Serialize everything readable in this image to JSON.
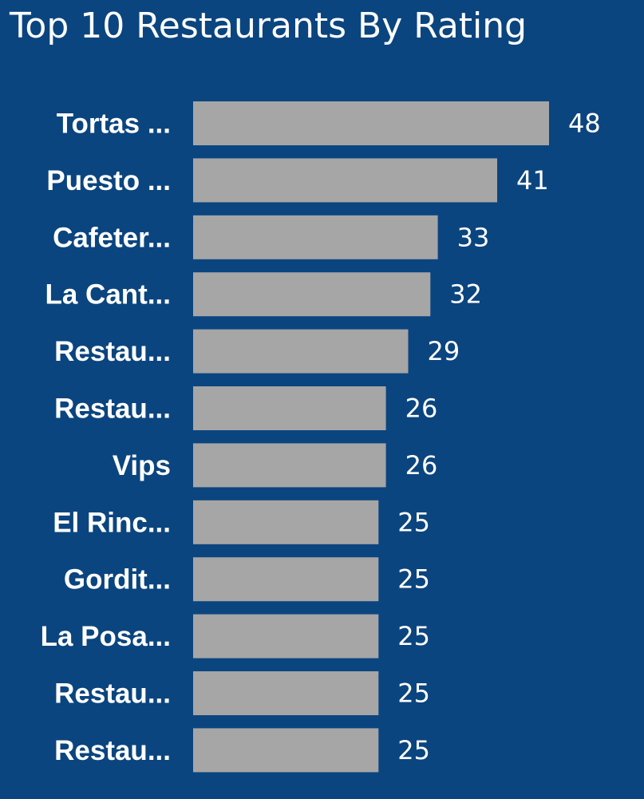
{
  "chart_data": {
    "type": "bar",
    "orientation": "horizontal",
    "title": "Top 10 Restaurants By Rating",
    "xlabel": "",
    "ylabel": "",
    "xlim": [
      0,
      48
    ],
    "grid": false,
    "bar_color": "#A6A6A6",
    "background_color": "#0B457F",
    "text_color": "#FFFFFF",
    "categories": [
      "Tortas ...",
      "Puesto ...",
      "Cafeter...",
      "La Cant...",
      "Restau...",
      "Restau...",
      "Vips",
      "El Rinc...",
      "Gordit...",
      "La Posa...",
      "Restau...",
      "Restau..."
    ],
    "values": [
      48,
      41,
      33,
      32,
      29,
      26,
      26,
      25,
      25,
      25,
      25,
      25
    ]
  }
}
